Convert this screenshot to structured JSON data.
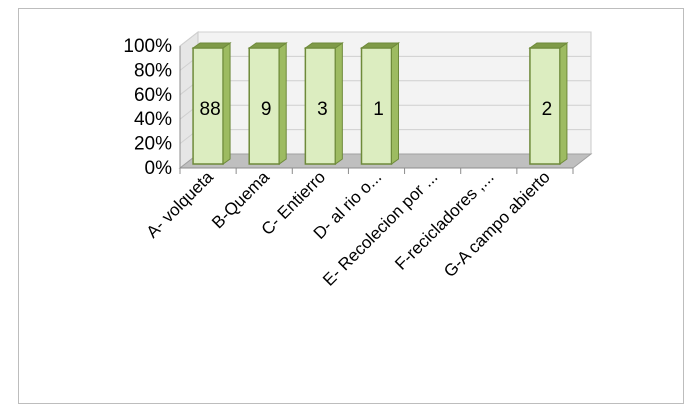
{
  "chart_data": {
    "type": "bar",
    "style": "3d-column",
    "categories": [
      "A- volqueta",
      "B-Quema",
      "C- Entierro",
      "D- al rio o...",
      "E- Recolecion por ...",
      "F-recicladores ,...",
      "G-A campo abierto"
    ],
    "values": [
      100,
      100,
      100,
      100,
      0,
      0,
      100
    ],
    "data_labels": [
      "88",
      "9",
      "3",
      "1",
      "",
      "",
      "2"
    ],
    "ylim": [
      0,
      100
    ],
    "yticks": [
      "0%",
      "20%",
      "40%",
      "60%",
      "80%",
      "100%"
    ],
    "title": "",
    "xlabel": "",
    "ylabel": "",
    "grid": true,
    "legend": "none",
    "colors": {
      "bar_front": "#dcedc0",
      "bar_side": "#9dbb61",
      "bar_top": "#7f9a48",
      "bar_stroke": "#6e8a3a",
      "wall": "#f3f3f3",
      "floor": "#bfbfbf",
      "grid": "#d0d0d0"
    }
  }
}
